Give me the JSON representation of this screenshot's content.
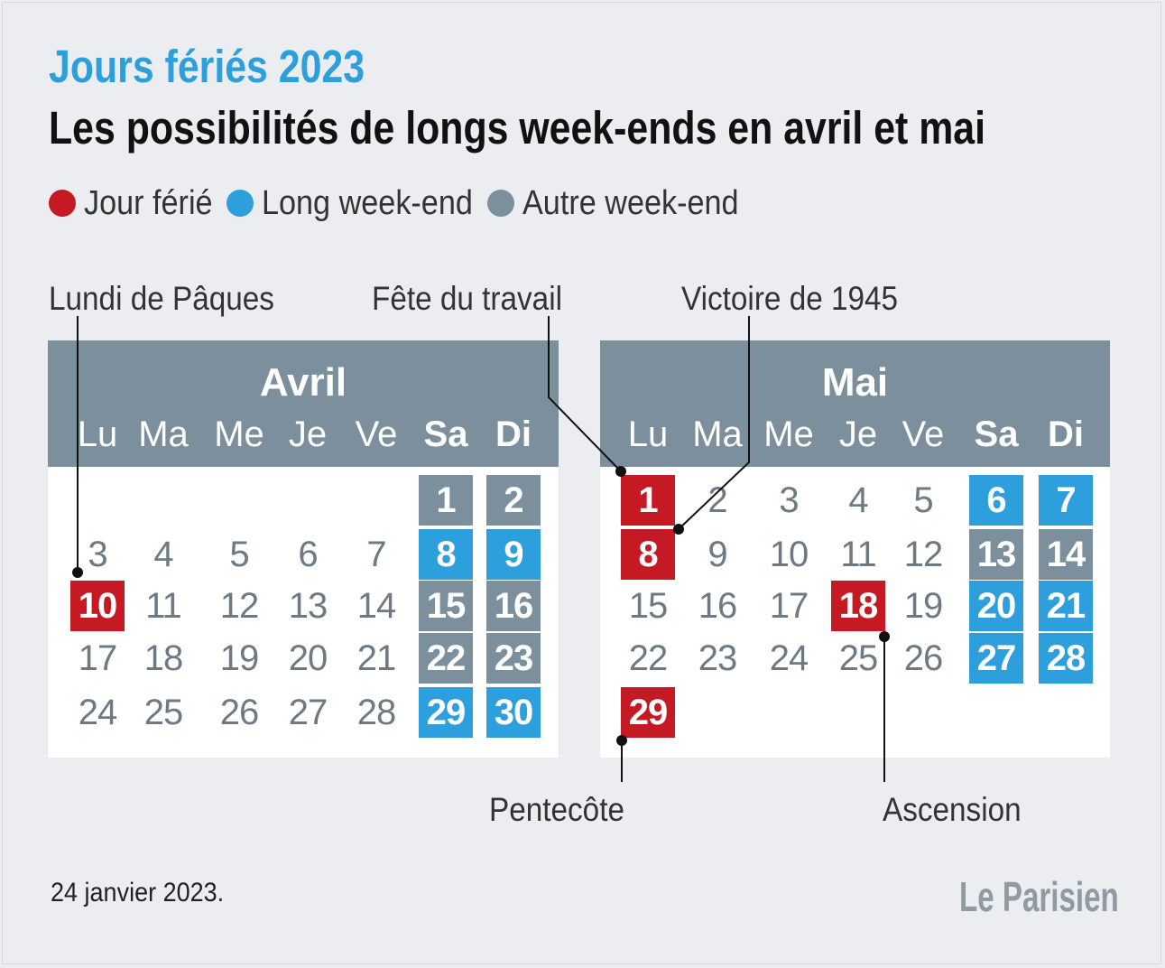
{
  "kicker": "Jours fériés 2023",
  "headline": "Les possibilités de longs week-ends en avril et mai",
  "legend": [
    {
      "label": "Jour férié",
      "color": "#c51a23"
    },
    {
      "label": "Long week-end",
      "color": "#2c9fdc"
    },
    {
      "label": "Autre week-end",
      "color": "#7b909c"
    }
  ],
  "callouts": {
    "paques": "Lundi de Pâques",
    "travail": "Fête du travail",
    "victoire": "Victoire de 1945",
    "pentecote": "Pentecôte",
    "ascension": "Ascension"
  },
  "weekdays": [
    "Lu",
    "Ma",
    "Me",
    "Je",
    "Ve",
    "Sa",
    "Di"
  ],
  "calendars": [
    {
      "month": "Avril",
      "weeks": [
        [
          null,
          null,
          null,
          null,
          null,
          {
            "d": "1",
            "s": "other"
          },
          {
            "d": "2",
            "s": "other"
          }
        ],
        [
          {
            "d": "3"
          },
          {
            "d": "4"
          },
          {
            "d": "5"
          },
          {
            "d": "6"
          },
          {
            "d": "7"
          },
          {
            "d": "8",
            "s": "long"
          },
          {
            "d": "9",
            "s": "long"
          }
        ],
        [
          {
            "d": "10",
            "s": "holiday"
          },
          {
            "d": "11"
          },
          {
            "d": "12"
          },
          {
            "d": "13"
          },
          {
            "d": "14"
          },
          {
            "d": "15",
            "s": "other"
          },
          {
            "d": "16",
            "s": "other"
          }
        ],
        [
          {
            "d": "17"
          },
          {
            "d": "18"
          },
          {
            "d": "19"
          },
          {
            "d": "20"
          },
          {
            "d": "21"
          },
          {
            "d": "22",
            "s": "other"
          },
          {
            "d": "23",
            "s": "other"
          }
        ],
        [
          {
            "d": "24"
          },
          {
            "d": "25"
          },
          {
            "d": "26"
          },
          {
            "d": "27"
          },
          {
            "d": "28"
          },
          {
            "d": "29",
            "s": "long"
          },
          {
            "d": "30",
            "s": "long"
          }
        ]
      ]
    },
    {
      "month": "Mai",
      "weeks": [
        [
          {
            "d": "1",
            "s": "holiday"
          },
          {
            "d": "2"
          },
          {
            "d": "3"
          },
          {
            "d": "4"
          },
          {
            "d": "5"
          },
          {
            "d": "6",
            "s": "long"
          },
          {
            "d": "7",
            "s": "long"
          }
        ],
        [
          {
            "d": "8",
            "s": "holiday"
          },
          {
            "d": "9"
          },
          {
            "d": "10"
          },
          {
            "d": "11"
          },
          {
            "d": "12"
          },
          {
            "d": "13",
            "s": "other"
          },
          {
            "d": "14",
            "s": "other"
          }
        ],
        [
          {
            "d": "15"
          },
          {
            "d": "16"
          },
          {
            "d": "17"
          },
          {
            "d": "18",
            "s": "holiday"
          },
          {
            "d": "19"
          },
          {
            "d": "20",
            "s": "long"
          },
          {
            "d": "21",
            "s": "long"
          }
        ],
        [
          {
            "d": "22"
          },
          {
            "d": "23"
          },
          {
            "d": "24"
          },
          {
            "d": "25"
          },
          {
            "d": "26"
          },
          {
            "d": "27",
            "s": "long"
          },
          {
            "d": "28",
            "s": "long"
          }
        ],
        [
          {
            "d": "29",
            "s": "holiday"
          },
          null,
          null,
          null,
          null,
          null,
          null
        ]
      ]
    }
  ],
  "footer": {
    "date": "24 janvier 2023.",
    "brand": "Le Parisien"
  }
}
